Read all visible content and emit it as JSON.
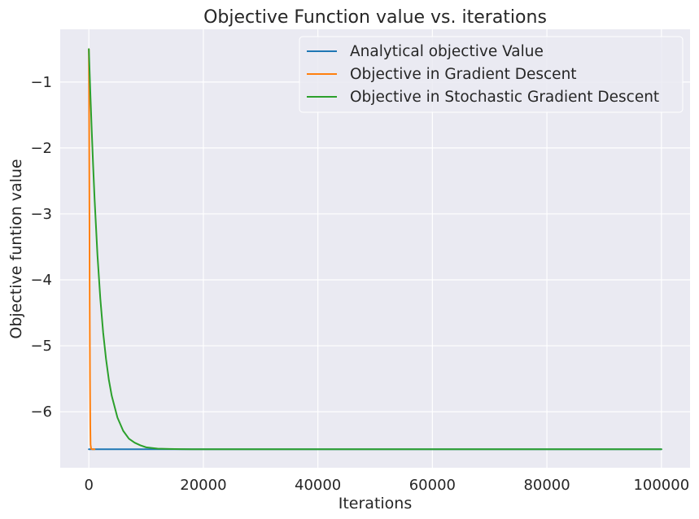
{
  "chart_data": {
    "type": "line",
    "title": "Objective Function value vs. iterations",
    "xlabel": "Iterations",
    "ylabel": "Objective funtion value",
    "xlim": [
      -5000,
      105000
    ],
    "ylim": [
      -6.85,
      -0.2
    ],
    "xticks": [
      0,
      20000,
      40000,
      60000,
      80000,
      100000
    ],
    "xtick_labels": [
      "0",
      "20000",
      "40000",
      "60000",
      "80000",
      "100000"
    ],
    "yticks": [
      -1,
      -2,
      -3,
      -4,
      -5,
      -6
    ],
    "ytick_labels": [
      "−1",
      "−2",
      "−3",
      "−4",
      "−5",
      "−6"
    ],
    "grid": true,
    "legend_position": "top-right",
    "background": "#eaeaf2",
    "series": [
      {
        "name": "Analytical objective Value",
        "color": "#1f77b4",
        "x": [
          0,
          100000
        ],
        "y": [
          -6.57,
          -6.57
        ]
      },
      {
        "name": "Objective in Gradient Descent",
        "color": "#ff7f0e",
        "x": [
          0,
          50,
          100,
          150,
          200,
          250,
          300,
          400,
          600,
          1000
        ],
        "y": [
          -0.5,
          -1.6,
          -3.0,
          -4.4,
          -5.5,
          -6.2,
          -6.5,
          -6.56,
          -6.57,
          -6.57
        ]
      },
      {
        "name": "Objective in Stochastic Gradient Descent",
        "color": "#2ca02c",
        "x": [
          0,
          250,
          500,
          750,
          1000,
          1500,
          2000,
          2500,
          3000,
          3500,
          4000,
          5000,
          6000,
          7000,
          8000,
          9000,
          10000,
          12000,
          14000,
          16000,
          18000,
          20000,
          25000,
          30000,
          40000,
          60000,
          80000,
          100000
        ],
        "y": [
          -0.5,
          -1.14,
          -1.73,
          -2.27,
          -2.77,
          -3.62,
          -4.28,
          -4.8,
          -5.2,
          -5.52,
          -5.76,
          -6.09,
          -6.29,
          -6.41,
          -6.47,
          -6.51,
          -6.54,
          -6.56,
          -6.565,
          -6.568,
          -6.569,
          -6.57,
          -6.57,
          -6.57,
          -6.57,
          -6.57,
          -6.57,
          -6.57
        ]
      }
    ]
  }
}
